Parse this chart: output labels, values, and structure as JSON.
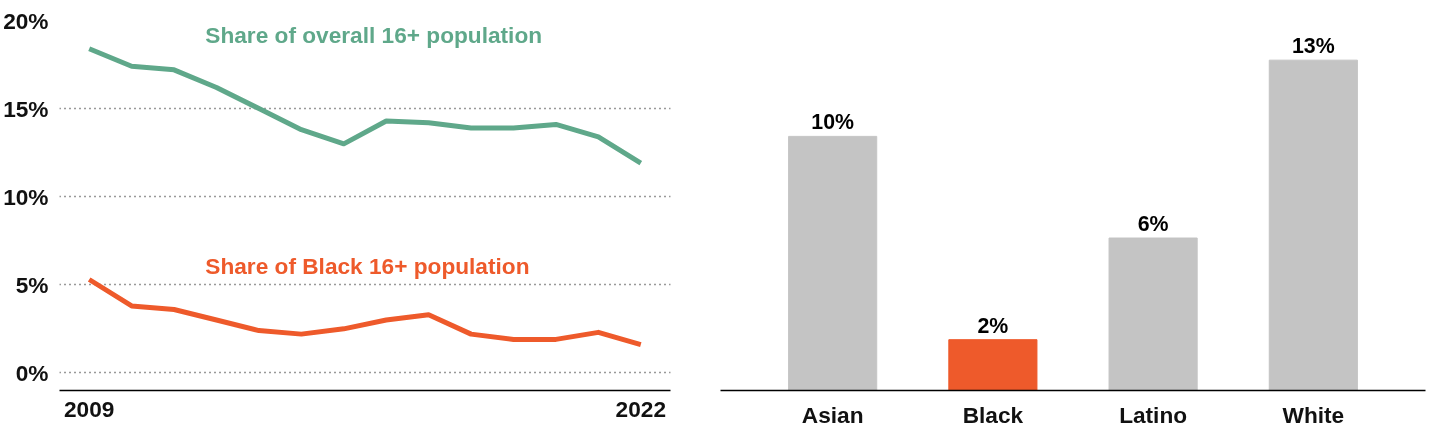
{
  "chart_data": [
    {
      "type": "line",
      "x": [
        2009,
        2010,
        2011,
        2012,
        2013,
        2014,
        2015,
        2016,
        2017,
        2018,
        2019,
        2020,
        2021,
        2022
      ],
      "series": [
        {
          "name": "Share of overall 16+ population",
          "color": "#5fa88a",
          "values": [
            18.4,
            17.4,
            17.2,
            16.2,
            15.0,
            13.8,
            13.0,
            14.3,
            14.2,
            13.9,
            13.9,
            14.1,
            13.4,
            11.9
          ]
        },
        {
          "name": "Share of Black 16+ population",
          "color": "#ee5a2b",
          "values": [
            5.3,
            3.8,
            3.6,
            3.0,
            2.4,
            2.2,
            2.5,
            3.0,
            3.3,
            2.2,
            1.9,
            1.9,
            2.3,
            1.6
          ]
        }
      ],
      "xlim": [
        2008.3,
        2022.7
      ],
      "xticks": [
        2009,
        2022
      ],
      "ylim": [
        -1,
        20
      ],
      "yticks": [
        {
          "value": 0,
          "label": "0%"
        },
        {
          "value": 5,
          "label": "5%"
        },
        {
          "value": 10,
          "label": "10%"
        },
        {
          "value": 15,
          "label": "15%"
        },
        {
          "value": 20,
          "label": "20%"
        }
      ],
      "grid": "y",
      "line_style": "solid",
      "marker": "none"
    },
    {
      "type": "bar",
      "categories": [
        "Asian",
        "Black",
        "Latino",
        "White"
      ],
      "values": [
        10,
        2,
        6,
        13
      ],
      "colors": [
        "#c4c4c4",
        "#ee5a2b",
        "#c4c4c4",
        "#c4c4c4"
      ],
      "value_labels": [
        "10%",
        "2%",
        "6%",
        "13%"
      ]
    }
  ]
}
